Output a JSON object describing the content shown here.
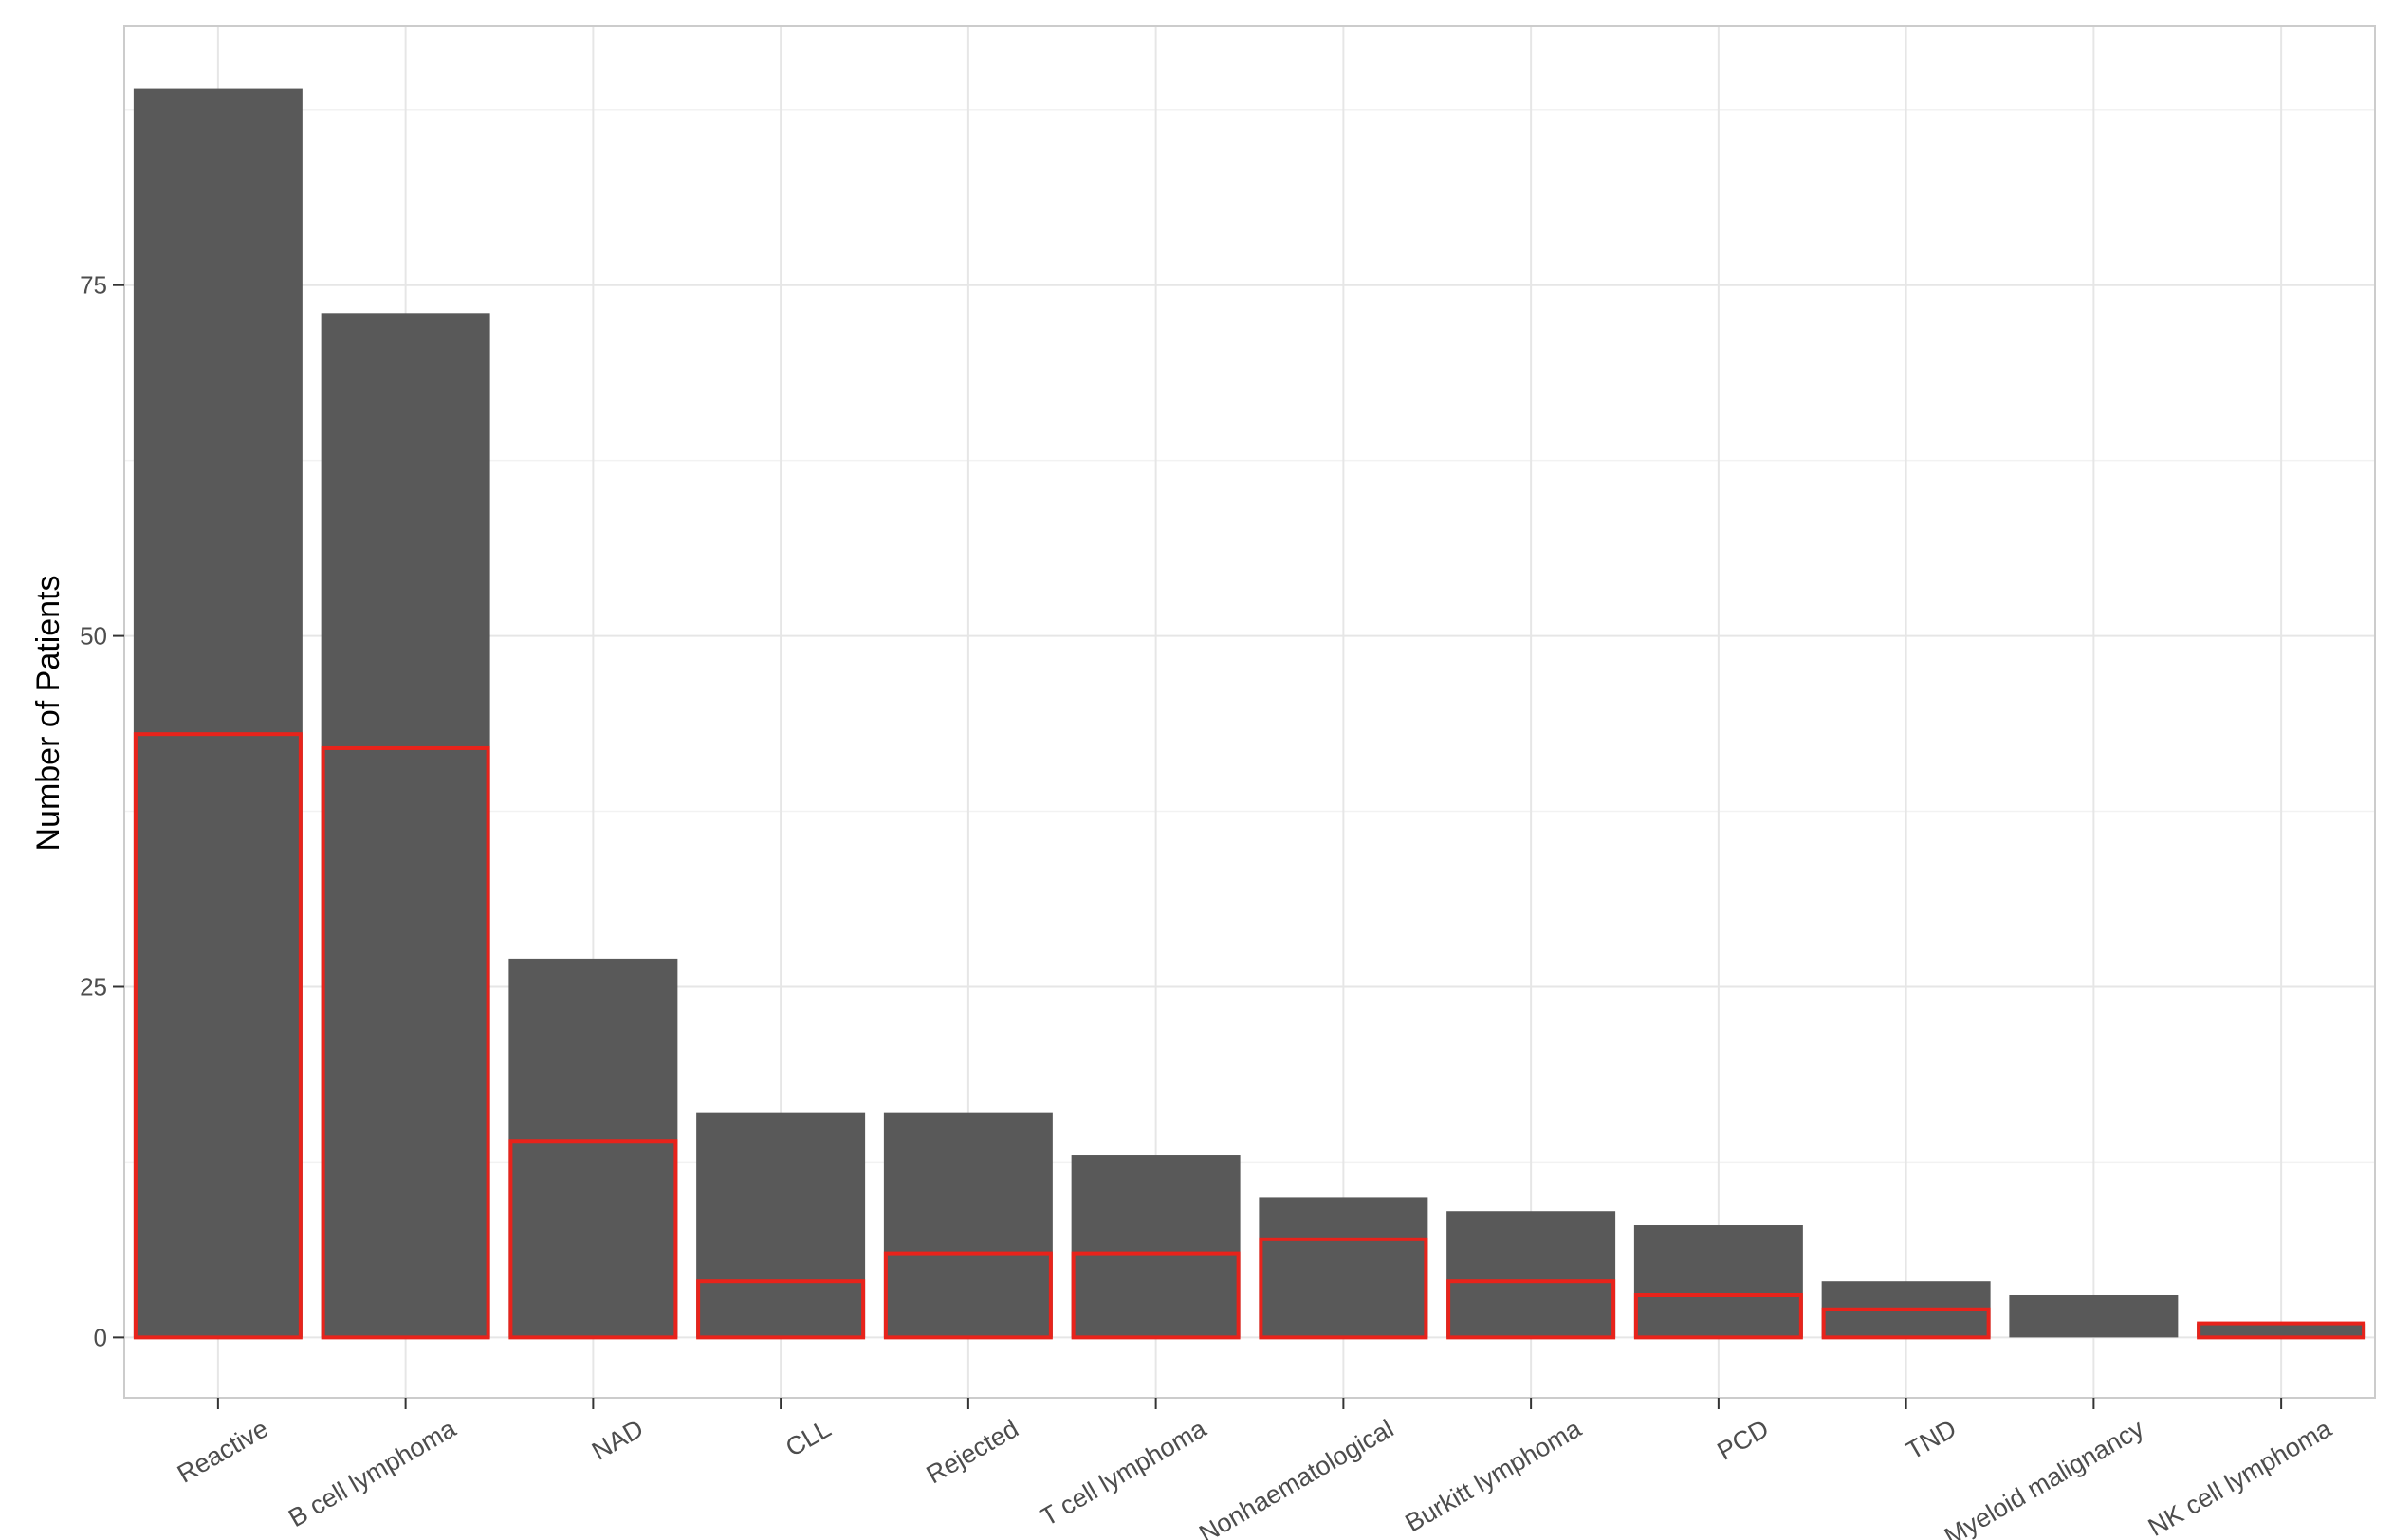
{
  "chart_data": {
    "type": "bar",
    "title": "",
    "xlabel": "",
    "ylabel": "Number of Patients",
    "categories": [
      "Reactive",
      "B cell lymphoma",
      "NAD",
      "CLL",
      "Rejected",
      "T cell lymphoma",
      "Nonhaematological",
      "Burkitt lymphoma",
      "PCD",
      "TND",
      "Myeloid malignancy",
      "NK cell lymphoma"
    ],
    "series": [
      {
        "values": [
          89,
          73,
          27,
          16,
          16,
          13,
          10,
          9,
          8,
          4,
          3,
          1
        ],
        "fill": "#595959",
        "outline": "none"
      },
      {
        "values": [
          43,
          42,
          14,
          4,
          6,
          6,
          7,
          4,
          3,
          2,
          0,
          1
        ],
        "fill": "none",
        "outline": "#e8231b"
      }
    ],
    "ylim": [
      -4.3,
      93.5
    ],
    "yticks": [
      0,
      25,
      50,
      75
    ],
    "grid": true,
    "legend": "none",
    "colors": {
      "panel_border": "#cccccc",
      "grid_major": "#e6e6e6",
      "grid_minor": "#f2f2f2"
    }
  }
}
